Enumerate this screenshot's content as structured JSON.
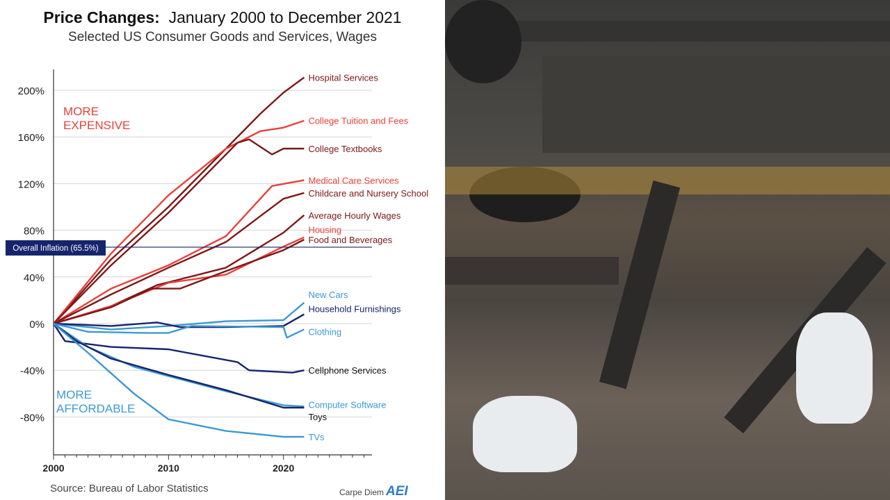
{
  "chart_data": {
    "type": "line",
    "title_bold": "Price Changes:",
    "title_rest": "January 2000 to December 2021",
    "subtitle": "Selected US Consumer Goods and Services, Wages",
    "xlabel": "",
    "ylabel": "",
    "xlim": [
      2000,
      2027.7
    ],
    "ylim": [
      -112,
      218
    ],
    "x_ticks": [
      "2000",
      "2010",
      "2020"
    ],
    "y_ticks": [
      "200%",
      "160%",
      "120%",
      "80%",
      "40%",
      "0%",
      "-40%",
      "-80%"
    ],
    "y_tick_values": [
      200,
      160,
      120,
      80,
      40,
      0,
      -40,
      -80
    ],
    "grid": true,
    "annotations": {
      "more_expensive": [
        "MORE",
        "EXPENSIVE"
      ],
      "more_affordable": [
        "MORE",
        "AFFORDABLE"
      ],
      "inflation_label": "Overall Inflation (65.5%)",
      "inflation_value": 65.5
    },
    "colors": {
      "red": "#e8403a",
      "darkred": "#7d1717",
      "lightblue": "#3d98d2",
      "navy": "#15246b",
      "black": "#111111"
    },
    "series": [
      {
        "name": "Hospital Services",
        "color": "#7d1717",
        "label_color": "#7d1717",
        "x": [
          2000,
          2005,
          2010,
          2015,
          2018,
          2020,
          2021.8
        ],
        "values": [
          0,
          55,
          100,
          150,
          180,
          198,
          211
        ]
      },
      {
        "name": "College Tuition and Fees",
        "color": "#e8403a",
        "label_color": "#e8403a",
        "x": [
          2000,
          2005,
          2010,
          2015,
          2018,
          2020,
          2021.8
        ],
        "values": [
          0,
          60,
          110,
          150,
          165,
          168,
          174
        ]
      },
      {
        "name": "College Textbooks",
        "color": "#7d1717",
        "label_color": "#7d1717",
        "x": [
          2000,
          2005,
          2010,
          2016,
          2017,
          2019,
          2020,
          2021.8
        ],
        "values": [
          0,
          50,
          95,
          155,
          158,
          145,
          150,
          150
        ]
      },
      {
        "name": "Medical Care Services",
        "color": "#e8403a",
        "label_color": "#e8403a",
        "x": [
          2000,
          2005,
          2010,
          2015,
          2019,
          2021.8
        ],
        "values": [
          0,
          30,
          50,
          75,
          118,
          123
        ]
      },
      {
        "name": "Childcare and Nursery School",
        "color": "#7d1717",
        "label_color": "#7d1717",
        "x": [
          2000,
          2005,
          2010,
          2015,
          2020,
          2021.8
        ],
        "values": [
          0,
          25,
          48,
          70,
          107,
          112
        ]
      },
      {
        "name": "Average Hourly Wages",
        "color": "#7d1717",
        "label_color": "#7d1717",
        "x": [
          2000,
          2005,
          2009,
          2015,
          2020,
          2021.8
        ],
        "values": [
          0,
          15,
          33,
          48,
          78,
          93
        ]
      },
      {
        "name": "Housing",
        "color": "#e8403a",
        "label_color": "#e8403a",
        "x": [
          2000,
          2005,
          2010,
          2015,
          2020,
          2021.8
        ],
        "values": [
          0,
          15,
          35,
          42,
          66,
          74
        ]
      },
      {
        "name": "Food and Beverages",
        "color": "#7d1717",
        "label_color": "#7d1717",
        "x": [
          2000,
          2005,
          2008.5,
          2011,
          2015,
          2020,
          2021.8
        ],
        "values": [
          0,
          14,
          30,
          30,
          45,
          63,
          72
        ]
      },
      {
        "name": "New Cars",
        "color": "#3d98d2",
        "label_color": "#3d98d2",
        "x": [
          2000,
          2005,
          2010,
          2015,
          2020,
          2021.8
        ],
        "values": [
          0,
          -5,
          -2,
          2,
          3,
          18
        ]
      },
      {
        "name": "Household Furnishings",
        "color": "#15246b",
        "label_color": "#15246b",
        "x": [
          2000,
          2005,
          2009,
          2011,
          2015,
          2020,
          2021.8
        ],
        "values": [
          0,
          -2,
          1,
          -3,
          -3,
          -2,
          8
        ]
      },
      {
        "name": "Clothing",
        "color": "#3d98d2",
        "label_color": "#3d98d2",
        "x": [
          2000,
          2003,
          2008,
          2010,
          2012,
          2020,
          2020.3,
          2021.8
        ],
        "values": [
          0,
          -7,
          -8,
          -8,
          -2,
          -3,
          -12,
          -5
        ]
      },
      {
        "name": "Cellphone Services",
        "color": "#15246b",
        "label_color": "#111111",
        "x": [
          2000,
          2001,
          2005,
          2010,
          2016,
          2017,
          2020.8,
          2021.8
        ],
        "values": [
          0,
          -15,
          -20,
          -22,
          -33,
          -40,
          -42,
          -40
        ]
      },
      {
        "name": "Computer Software",
        "color": "#3d98d2",
        "label_color": "#3d98d2",
        "x": [
          2000,
          2003,
          2007,
          2010,
          2015,
          2020,
          2021.8
        ],
        "values": [
          0,
          -20,
          -37,
          -45,
          -58,
          -70,
          -71
        ]
      },
      {
        "name": "Toys",
        "color": "#15246b",
        "label_color": "#111111",
        "x": [
          2000,
          2002,
          2005,
          2010,
          2015,
          2020,
          2021.8
        ],
        "values": [
          0,
          -15,
          -30,
          -44,
          -57,
          -72,
          -72
        ]
      },
      {
        "name": "TVs",
        "color": "#3d98d2",
        "label_color": "#3d98d2",
        "x": [
          2000,
          2003,
          2007,
          2010,
          2015,
          2020,
          2021.8
        ],
        "values": [
          0,
          -25,
          -60,
          -82,
          -92,
          -97,
          -97
        ]
      }
    ],
    "source": "Source: Bureau of Labor Statistics",
    "brand_text": "Carpe Diem",
    "brand_logo": "AEI"
  }
}
